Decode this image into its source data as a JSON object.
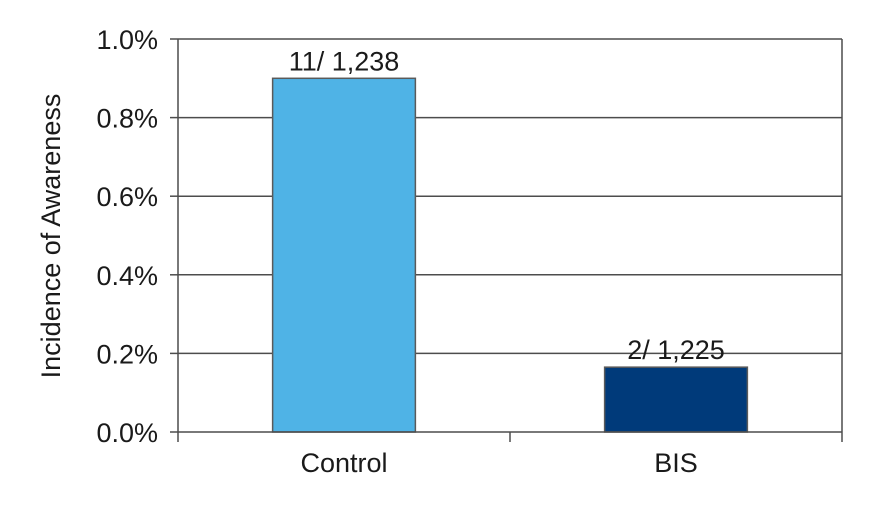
{
  "chart_data": {
    "type": "bar",
    "title": "",
    "xlabel": "",
    "ylabel": "Incidence of Awareness",
    "ylim": [
      0,
      1.0
    ],
    "yticks": [
      0.0,
      0.2,
      0.4,
      0.6,
      0.8,
      1.0
    ],
    "ytick_labels": [
      "0.0%",
      "0.2%",
      "0.4%",
      "0.6%",
      "0.8%",
      "1.0%"
    ],
    "categories": [
      "Control",
      "BIS"
    ],
    "values": [
      0.9,
      0.165
    ],
    "value_unit": "%",
    "data_labels": [
      "11/ 1,238",
      "2/ 1,225"
    ],
    "bar_colors": [
      "#4fb3e6",
      "#003a7a"
    ],
    "grid": true,
    "legend": "none"
  }
}
